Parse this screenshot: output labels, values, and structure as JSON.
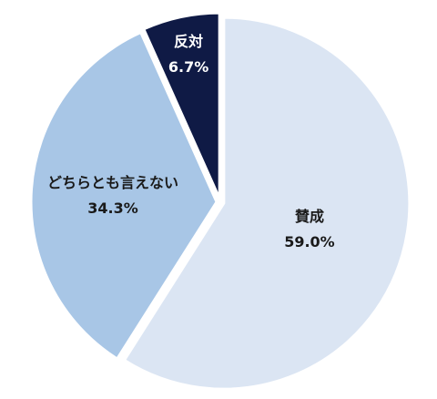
{
  "chart_data": {
    "type": "pie",
    "title": "",
    "slices": [
      {
        "name": "賛成",
        "value": 59.0,
        "label": "59.0%",
        "color": "#dbe5f3",
        "text_color": "#1a1a1a"
      },
      {
        "name": "どちらとも言えない",
        "value": 34.3,
        "label": "34.3%",
        "color": "#a8c6e6",
        "text_color": "#1a1a1a"
      },
      {
        "name": "反対",
        "value": 6.7,
        "label": "6.7%",
        "color": "#0f1a45",
        "text_color": "#ffffff"
      }
    ],
    "start_angle": "12 o'clock",
    "direction": "clockwise",
    "legend": "none"
  }
}
